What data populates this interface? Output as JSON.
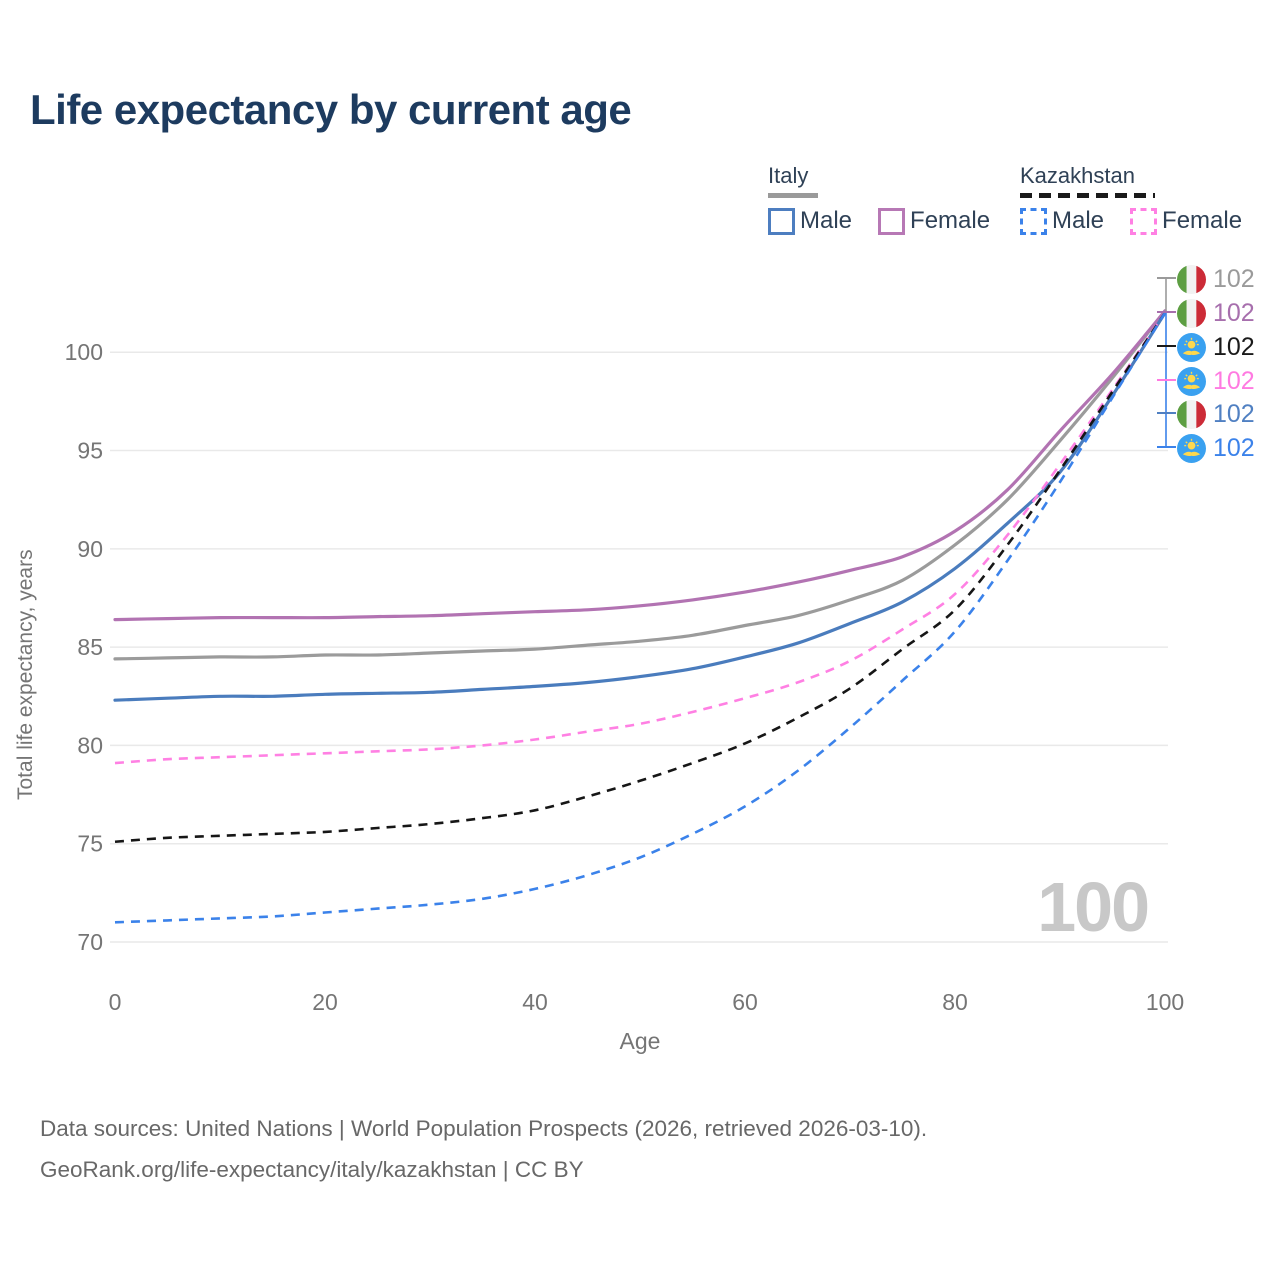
{
  "title": "Life expectancy by current age",
  "legend": {
    "groups": [
      {
        "name": "Italy",
        "line_style": "solid",
        "underline_color": "#9a9a9a",
        "items": [
          {
            "label": "Male",
            "color": "#4d7ec0"
          },
          {
            "label": "Female",
            "color": "#b778b5"
          }
        ]
      },
      {
        "name": "Kazakhstan",
        "line_style": "dashed",
        "underline_color": "#1a1a1a",
        "items": [
          {
            "label": "Male",
            "color": "#3b82ea"
          },
          {
            "label": "Female",
            "color": "#ff80e3"
          }
        ]
      }
    ]
  },
  "chart_data": {
    "type": "line",
    "title": "Life expectancy by current age",
    "xlabel": "Age",
    "ylabel": "Total life expectancy, years",
    "xlim": [
      0,
      100
    ],
    "ylim": [
      70,
      102.5
    ],
    "xticks": [
      0,
      20,
      40,
      60,
      80,
      100
    ],
    "yticks": [
      70,
      75,
      80,
      85,
      90,
      95,
      100
    ],
    "grid": "horizontal-only",
    "x": [
      0,
      5,
      10,
      15,
      20,
      25,
      30,
      35,
      40,
      45,
      50,
      55,
      60,
      65,
      70,
      75,
      80,
      85,
      90,
      95,
      100
    ],
    "series": [
      {
        "name": "Italy total",
        "country": "Italy",
        "style": "solid",
        "color": "#9b9b9b",
        "values": [
          84.4,
          84.45,
          84.5,
          84.5,
          84.6,
          84.6,
          84.7,
          84.8,
          84.9,
          85.1,
          85.3,
          85.6,
          86.1,
          86.6,
          87.4,
          88.4,
          90.2,
          92.5,
          95.5,
          98.7,
          102.1
        ]
      },
      {
        "name": "Italy female",
        "country": "Italy",
        "style": "solid",
        "color": "#b273b2",
        "values": [
          86.4,
          86.45,
          86.5,
          86.5,
          86.5,
          86.55,
          86.6,
          86.7,
          86.8,
          86.9,
          87.1,
          87.4,
          87.8,
          88.3,
          88.9,
          89.6,
          90.9,
          93.0,
          96.0,
          98.9,
          102.1
        ]
      },
      {
        "name": "Italy male",
        "country": "Italy",
        "style": "solid",
        "color": "#4a7cbd",
        "values": [
          82.3,
          82.4,
          82.5,
          82.5,
          82.6,
          82.65,
          82.7,
          82.85,
          83.0,
          83.2,
          83.5,
          83.9,
          84.5,
          85.2,
          86.2,
          87.3,
          89.0,
          91.3,
          93.9,
          97.8,
          102.0
        ]
      },
      {
        "name": "Kazakhstan female",
        "country": "Kazakhstan",
        "style": "dashed",
        "color": "#ff80e3",
        "values": [
          79.1,
          79.3,
          79.4,
          79.5,
          79.6,
          79.7,
          79.8,
          80.0,
          80.3,
          80.7,
          81.1,
          81.7,
          82.4,
          83.2,
          84.3,
          85.9,
          87.7,
          90.7,
          94.3,
          98.1,
          102.0
        ]
      },
      {
        "name": "Kazakhstan total",
        "country": "Kazakhstan",
        "style": "dashed",
        "color": "#161616",
        "values": [
          75.1,
          75.3,
          75.4,
          75.5,
          75.6,
          75.8,
          76.0,
          76.3,
          76.7,
          77.4,
          78.2,
          79.1,
          80.1,
          81.4,
          82.9,
          84.9,
          86.9,
          90.2,
          94.0,
          98.0,
          102.0
        ]
      },
      {
        "name": "Kazakhstan male",
        "country": "Kazakhstan",
        "style": "dashed",
        "color": "#3b82ea",
        "values": [
          71.0,
          71.1,
          71.2,
          71.3,
          71.5,
          71.7,
          71.9,
          72.2,
          72.7,
          73.4,
          74.3,
          75.5,
          76.9,
          78.7,
          80.9,
          83.3,
          85.8,
          89.4,
          93.4,
          97.7,
          102.0
        ]
      }
    ]
  },
  "end_labels": [
    {
      "value": "102",
      "series": "Italy total",
      "flag_icon": "italy-flag-icon",
      "color": "#9a9a9a"
    },
    {
      "value": "102",
      "series": "Italy female",
      "flag_icon": "italy-flag-icon",
      "color": "#a76fad"
    },
    {
      "value": "102",
      "series": "Kazakhstan total",
      "flag_icon": "kazakhstan-flag-icon",
      "color": "#1a1a1a"
    },
    {
      "value": "102",
      "series": "Kazakhstan female",
      "flag_icon": "kazakhstan-flag-icon",
      "color": "#ff7ae1"
    },
    {
      "value": "102",
      "series": "Italy male",
      "flag_icon": "italy-flag-icon",
      "color": "#5080c2"
    },
    {
      "value": "102",
      "series": "Kazakhstan male",
      "flag_icon": "kazakhstan-flag-icon",
      "color": "#3b82ea"
    }
  ],
  "watermark": "100",
  "footer": {
    "line1": "Data sources: United Nations | World Population Prospects (2026, retrieved 2026-03-10).",
    "line2": "GeoRank.org/life-expectancy/italy/kazakhstan | CC BY"
  },
  "colors": {
    "title": "#1d3b5f",
    "axis_text": "#757575",
    "gridline": "#e9e9e9",
    "legend_text": "#2f4156",
    "footer_text": "#686868",
    "watermark": "#c8c8c8"
  }
}
